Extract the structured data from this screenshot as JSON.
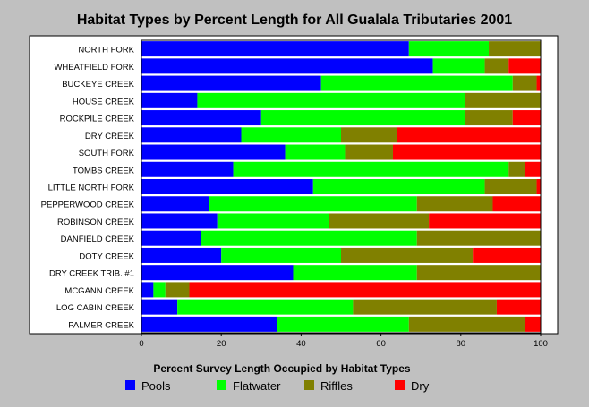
{
  "chart_data": {
    "type": "bar",
    "orientation": "horizontal",
    "stacked": true,
    "title": "Habitat Types by Percent Length for All Gualala Tributaries 2001",
    "xlabel": "Percent Survey Length Occupied by Habitat Types",
    "ylabel": "",
    "xlim": [
      0,
      100
    ],
    "xticks": [
      0,
      20,
      40,
      60,
      80,
      100
    ],
    "grid": false,
    "legend_position": "bottom",
    "categories": [
      "NORTH FORK",
      "WHEATFIELD FORK",
      "BUCKEYE CREEK",
      "HOUSE CREEK",
      "ROCKPILE CREEK",
      "DRY CREEK",
      "SOUTH FORK",
      "TOMBS CREEK",
      "LITTLE NORTH FORK",
      "PEPPERWOOD CREEK",
      "ROBINSON CREEK",
      "DANFIELD CREEK",
      "DOTY CREEK",
      "DRY CREEK TRIB. #1",
      "MCGANN CREEK",
      "LOG CABIN CREEK",
      "PALMER CREEK"
    ],
    "series": [
      {
        "name": "Pools",
        "color": "#0000ff",
        "values": [
          67,
          73,
          45,
          14,
          30,
          25,
          36,
          23,
          43,
          17,
          19,
          15,
          20,
          38,
          3,
          9,
          34
        ]
      },
      {
        "name": "Flatwater",
        "color": "#00ff00",
        "values": [
          20,
          13,
          48,
          67,
          51,
          25,
          15,
          69,
          43,
          52,
          28,
          54,
          30,
          31,
          3,
          44,
          33
        ]
      },
      {
        "name": "Riffles",
        "color": "#808000",
        "values": [
          13,
          6,
          6,
          19,
          12,
          14,
          12,
          4,
          13,
          19,
          25,
          31,
          33,
          31,
          6,
          36,
          29
        ]
      },
      {
        "name": "Dry",
        "color": "#ff0000",
        "values": [
          0,
          8,
          1,
          0,
          7,
          36,
          37,
          4,
          1,
          12,
          28,
          0,
          17,
          0,
          88,
          11,
          4
        ]
      }
    ]
  }
}
